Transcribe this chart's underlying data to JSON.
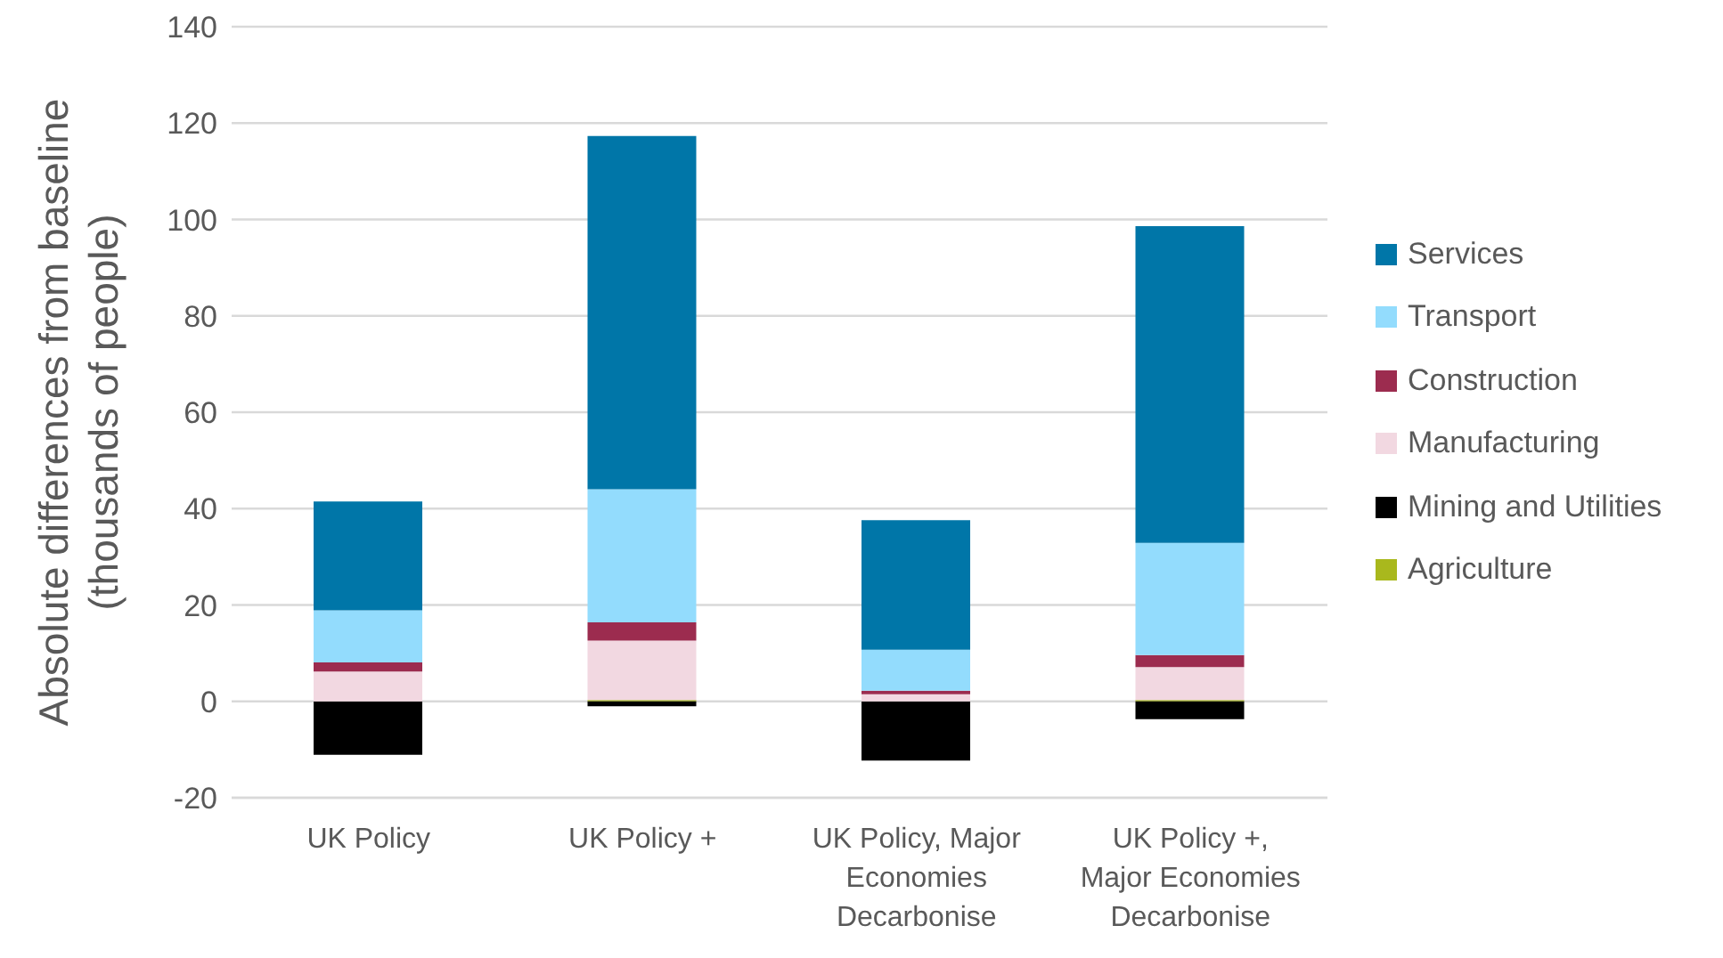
{
  "chart_data": {
    "type": "bar",
    "categories": [
      "UK Policy",
      "UK Policy +",
      "UK Policy, Major Economies Decarbonise",
      "UK Policy +, Major Economies Decarbonise"
    ],
    "series": [
      {
        "name": "Agriculture",
        "color": "#a9b81d",
        "values": [
          0,
          0.3,
          0,
          0.3
        ]
      },
      {
        "name": "Mining and Utilities",
        "color": "#000000",
        "values": [
          -11.1,
          -1.0,
          -12.3,
          -3.7
        ]
      },
      {
        "name": "Manufacturing",
        "color": "#f2d8e1",
        "values": [
          6.2,
          12.3,
          1.5,
          6.8
        ]
      },
      {
        "name": "Construction",
        "color": "#9c2c4f",
        "values": [
          1.9,
          3.8,
          0.7,
          2.5
        ]
      },
      {
        "name": "Transport",
        "color": "#93dcfd",
        "values": [
          10.8,
          27.6,
          8.5,
          23.3
        ]
      },
      {
        "name": "Services",
        "color": "#0076a8",
        "values": [
          22.6,
          73.3,
          26.9,
          65.7
        ]
      }
    ],
    "stacked": true,
    "ylabel": "Absolute differences from baseline (thousands of people)",
    "ylim": [
      -20,
      140
    ],
    "yticks": [
      -20,
      0,
      20,
      40,
      60,
      80,
      100,
      120,
      140
    ],
    "grid": "y",
    "legend": "right"
  }
}
